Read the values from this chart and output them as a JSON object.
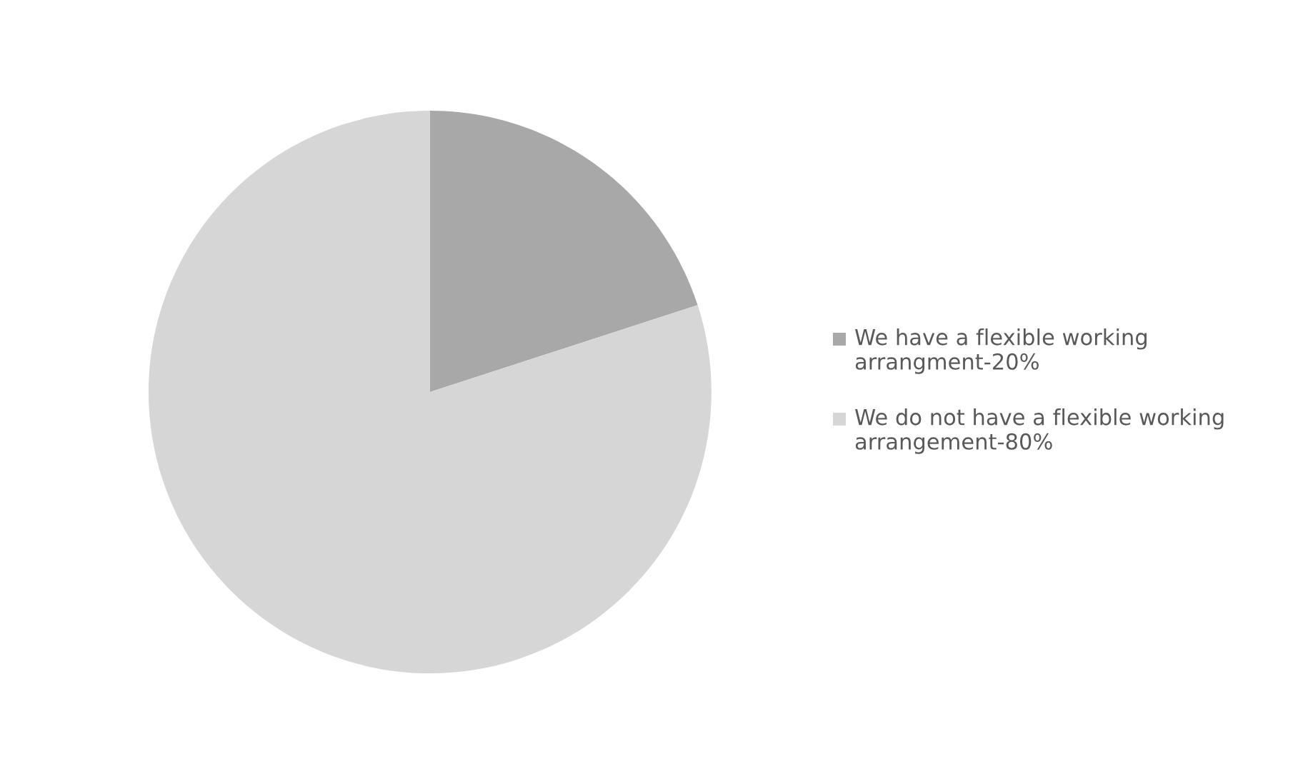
{
  "chart_data": {
    "type": "pie",
    "categories": [
      "We have a flexible working arrangment-20%",
      "We do not have a flexible working arrangement-80%"
    ],
    "values": [
      20,
      80
    ],
    "colors": [
      "#a8a8a8",
      "#d6d6d6"
    ],
    "legend": "right"
  }
}
